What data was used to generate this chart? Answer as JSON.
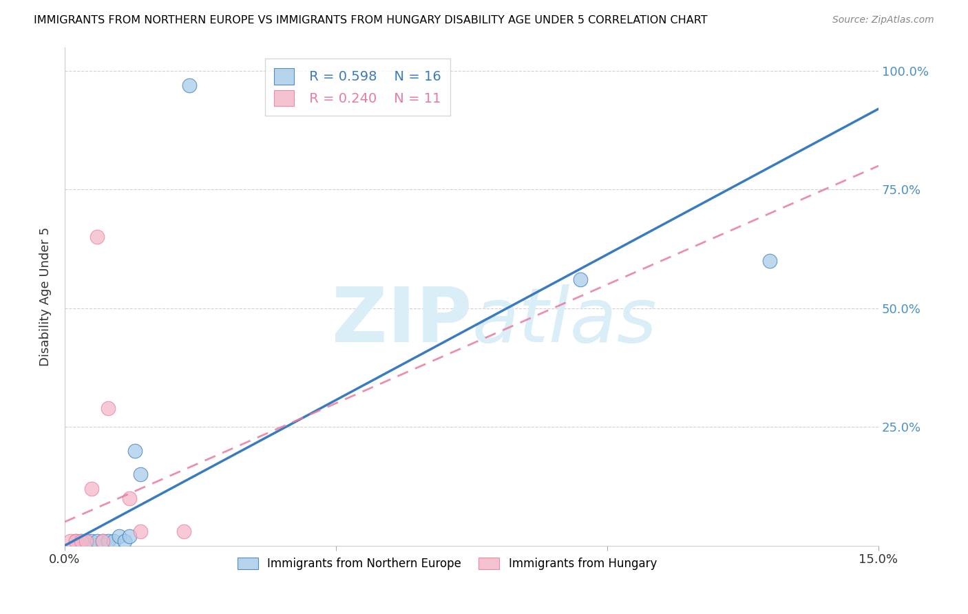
{
  "title": "IMMIGRANTS FROM NORTHERN EUROPE VS IMMIGRANTS FROM HUNGARY DISABILITY AGE UNDER 5 CORRELATION CHART",
  "source": "Source: ZipAtlas.com",
  "ylabel": "Disability Age Under 5",
  "xlim": [
    0.0,
    0.15
  ],
  "ylim": [
    0.0,
    1.05
  ],
  "ytick_labels": [
    "100.0%",
    "75.0%",
    "50.0%",
    "25.0%"
  ],
  "ytick_positions": [
    1.0,
    0.75,
    0.5,
    0.25
  ],
  "xtick_positions": [
    0.0,
    0.05,
    0.1,
    0.15
  ],
  "xtick_labels": [
    "0.0%",
    "",
    "",
    "15.0%"
  ],
  "blue_scatter_x": [
    0.002,
    0.003,
    0.004,
    0.005,
    0.006,
    0.007,
    0.008,
    0.009,
    0.01,
    0.011,
    0.012,
    0.013,
    0.014,
    0.023,
    0.095,
    0.13
  ],
  "blue_scatter_y": [
    0.01,
    0.01,
    0.01,
    0.01,
    0.01,
    0.01,
    0.01,
    0.01,
    0.02,
    0.01,
    0.02,
    0.2,
    0.15,
    0.97,
    0.56,
    0.6
  ],
  "pink_scatter_x": [
    0.001,
    0.002,
    0.003,
    0.004,
    0.005,
    0.006,
    0.007,
    0.008,
    0.012,
    0.014,
    0.022
  ],
  "pink_scatter_y": [
    0.01,
    0.01,
    0.01,
    0.01,
    0.12,
    0.65,
    0.01,
    0.29,
    0.1,
    0.03,
    0.03
  ],
  "blue_line_x": [
    0.0,
    0.15
  ],
  "blue_line_y": [
    0.0,
    0.92
  ],
  "pink_line_x": [
    0.0,
    0.15
  ],
  "pink_line_y": [
    0.05,
    0.8
  ],
  "legend_blue_r": "R = 0.598",
  "legend_blue_n": "N = 16",
  "legend_pink_r": "R = 0.240",
  "legend_pink_n": "N = 11",
  "blue_color": "#a8cce8",
  "pink_color": "#f4b8c8",
  "blue_line_color": "#3a7bbf",
  "pink_line_color": "#e87ca0",
  "grid_color": "#d0d0d0",
  "right_axis_color": "#4a90c4",
  "watermark_color": "#daeef8"
}
